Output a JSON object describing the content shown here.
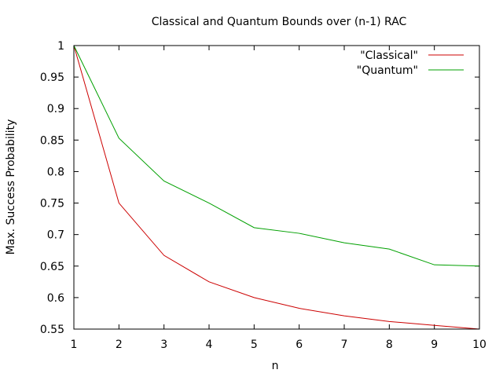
{
  "chart_data": {
    "type": "line",
    "title": "Classical and Quantum Bounds over (n-1) RAC",
    "xlabel": "n",
    "ylabel": "Max. Success Probability",
    "x": [
      1,
      2,
      3,
      4,
      5,
      6,
      7,
      8,
      9,
      10
    ],
    "xlim": [
      1,
      10
    ],
    "ylim": [
      0.55,
      1
    ],
    "xticks": [
      "1",
      "2",
      "3",
      "4",
      "5",
      "6",
      "7",
      "8",
      "9",
      "10"
    ],
    "yticks": [
      "0.55",
      "0.6",
      "0.65",
      "0.7",
      "0.75",
      "0.8",
      "0.85",
      "0.9",
      "0.95",
      "1"
    ],
    "grid": false,
    "legend_position": "top-right",
    "series": [
      {
        "name": "\"Classical\"",
        "color": "#cc0000",
        "values": [
          1.0,
          0.75,
          0.667,
          0.625,
          0.6,
          0.583,
          0.571,
          0.562,
          0.556,
          0.55
        ]
      },
      {
        "name": "\"Quantum\"",
        "color": "#00a000",
        "values": [
          1.0,
          0.853,
          0.785,
          0.75,
          0.711,
          0.702,
          0.687,
          0.677,
          0.652,
          0.65
        ]
      }
    ]
  }
}
